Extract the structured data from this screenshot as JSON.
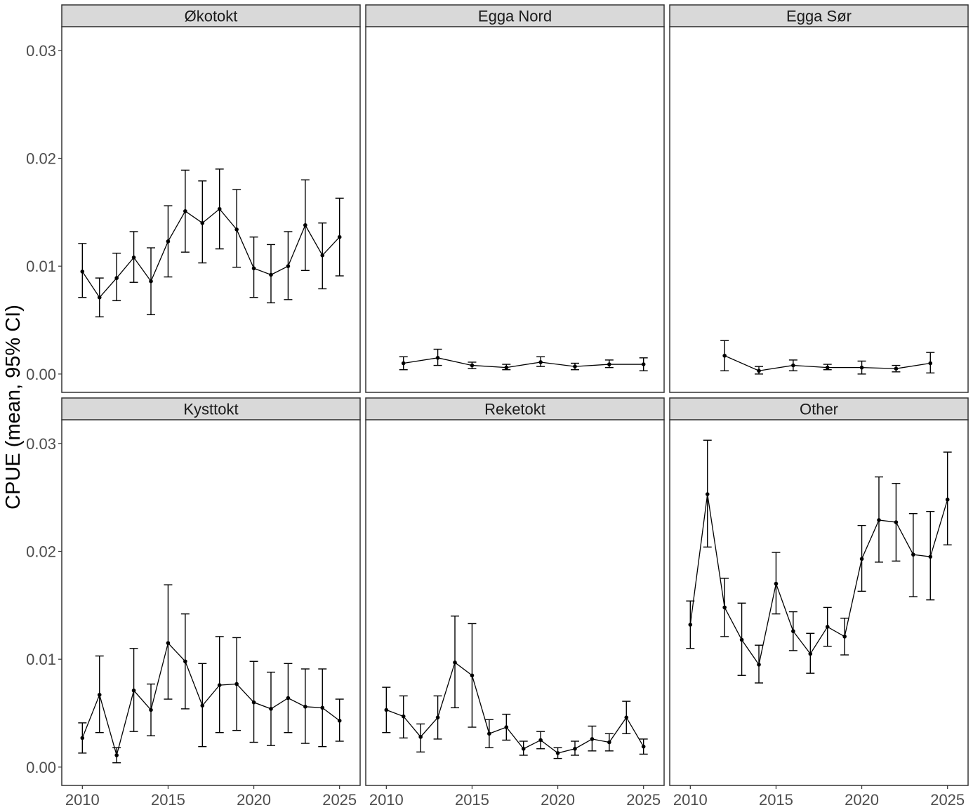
{
  "chart_data": {
    "type": "line",
    "facets": [
      "Økotokt",
      "Egga Nord",
      "Egga Sør",
      "Kysttokt",
      "Reketokt",
      "Other"
    ],
    "ylabel": "CPUE (mean, 95% CI)",
    "xlabel": "",
    "xlim": [
      2008.8,
      2026.2
    ],
    "ylim": [
      -0.0017,
      0.0322
    ],
    "x_ticks": [
      2010,
      2015,
      2020,
      2025
    ],
    "x_tick_labels": [
      "2010",
      "2015",
      "2020",
      "2025"
    ],
    "y_ticks": [
      0,
      0.01,
      0.02,
      0.03
    ],
    "y_tick_labels": [
      "0.00",
      "0.01",
      "0.02",
      "0.03"
    ],
    "grid": false,
    "legend": "none",
    "panels": [
      {
        "facet": "Økotokt",
        "x": [
          2010,
          2011,
          2012,
          2013,
          2014,
          2015,
          2016,
          2017,
          2018,
          2019,
          2020,
          2021,
          2022,
          2023,
          2024,
          2025
        ],
        "mean": [
          0.0095,
          0.0071,
          0.0089,
          0.0108,
          0.0086,
          0.0123,
          0.0151,
          0.014,
          0.0153,
          0.0134,
          0.0098,
          0.0092,
          0.01,
          0.0138,
          0.011,
          0.0127
        ],
        "lower": [
          0.0071,
          0.0053,
          0.0068,
          0.0085,
          0.0055,
          0.009,
          0.0113,
          0.0103,
          0.0116,
          0.0099,
          0.0071,
          0.0066,
          0.0069,
          0.0096,
          0.0079,
          0.0091
        ],
        "upper": [
          0.0121,
          0.0089,
          0.0112,
          0.0132,
          0.0117,
          0.0156,
          0.0189,
          0.0179,
          0.019,
          0.0171,
          0.0127,
          0.012,
          0.0132,
          0.018,
          0.014,
          0.0163
        ]
      },
      {
        "facet": "Egga Nord",
        "x": [
          2011,
          2013,
          2015,
          2017,
          2019,
          2021,
          2023,
          2025
        ],
        "mean": [
          0.001,
          0.0015,
          0.0008,
          0.0006,
          0.0011,
          0.0007,
          0.0009,
          0.0009
        ],
        "lower": [
          0.0004,
          0.0008,
          0.0005,
          0.0004,
          0.0007,
          0.0004,
          0.0006,
          0.0003
        ],
        "upper": [
          0.0016,
          0.0023,
          0.0011,
          0.0009,
          0.0016,
          0.001,
          0.0013,
          0.0015
        ]
      },
      {
        "facet": "Egga Sør",
        "x": [
          2012,
          2014,
          2016,
          2018,
          2020,
          2022,
          2024
        ],
        "mean": [
          0.0017,
          0.0003,
          0.0008,
          0.0006,
          0.0006,
          0.0005,
          0.001
        ],
        "lower": [
          0.0003,
          0.0,
          0.0003,
          0.0004,
          0.0,
          0.0002,
          0.0001
        ],
        "upper": [
          0.0031,
          0.0007,
          0.0013,
          0.0009,
          0.0012,
          0.0008,
          0.002
        ]
      },
      {
        "facet": "Kysttokt",
        "x": [
          2010,
          2011,
          2012,
          2013,
          2014,
          2015,
          2016,
          2017,
          2018,
          2019,
          2020,
          2021,
          2022,
          2023,
          2024,
          2025
        ],
        "mean": [
          0.0027,
          0.0067,
          0.0011,
          0.0071,
          0.0053,
          0.0115,
          0.0098,
          0.0057,
          0.0076,
          0.0077,
          0.006,
          0.0054,
          0.0064,
          0.0056,
          0.0055,
          0.0043
        ],
        "lower": [
          0.0013,
          0.0032,
          0.0004,
          0.0033,
          0.0029,
          0.0063,
          0.0054,
          0.0019,
          0.0032,
          0.0034,
          0.0023,
          0.002,
          0.0032,
          0.0022,
          0.0019,
          0.0024
        ],
        "upper": [
          0.0041,
          0.0103,
          0.0018,
          0.011,
          0.0077,
          0.0169,
          0.0142,
          0.0096,
          0.0121,
          0.012,
          0.0098,
          0.0088,
          0.0096,
          0.0091,
          0.0091,
          0.0063
        ]
      },
      {
        "facet": "Reketokt",
        "x": [
          2010,
          2011,
          2012,
          2013,
          2014,
          2015,
          2016,
          2017,
          2018,
          2019,
          2020,
          2021,
          2022,
          2023,
          2024,
          2025
        ],
        "mean": [
          0.0053,
          0.0047,
          0.0028,
          0.0046,
          0.0097,
          0.0085,
          0.0031,
          0.0037,
          0.0017,
          0.0025,
          0.0013,
          0.0017,
          0.0026,
          0.0023,
          0.0046,
          0.0019
        ],
        "lower": [
          0.0032,
          0.0027,
          0.0014,
          0.0026,
          0.0055,
          0.0037,
          0.0018,
          0.0025,
          0.0011,
          0.0017,
          0.0008,
          0.0011,
          0.0015,
          0.0015,
          0.0031,
          0.0012
        ],
        "upper": [
          0.0074,
          0.0066,
          0.004,
          0.0066,
          0.014,
          0.0133,
          0.0044,
          0.0049,
          0.0024,
          0.0033,
          0.0018,
          0.0024,
          0.0038,
          0.0031,
          0.0061,
          0.0026
        ]
      },
      {
        "facet": "Other",
        "x": [
          2010,
          2011,
          2012,
          2013,
          2014,
          2015,
          2016,
          2017,
          2018,
          2019,
          2020,
          2021,
          2022,
          2023,
          2024,
          2025
        ],
        "mean": [
          0.0132,
          0.0253,
          0.0148,
          0.0118,
          0.0095,
          0.017,
          0.0126,
          0.0105,
          0.013,
          0.0121,
          0.0193,
          0.0229,
          0.0227,
          0.0197,
          0.0195,
          0.0248
        ],
        "lower": [
          0.011,
          0.0204,
          0.0121,
          0.0085,
          0.0078,
          0.0142,
          0.0108,
          0.0087,
          0.0112,
          0.0104,
          0.0163,
          0.019,
          0.0191,
          0.0158,
          0.0155,
          0.0206
        ],
        "upper": [
          0.0154,
          0.0303,
          0.0175,
          0.0152,
          0.0113,
          0.0199,
          0.0144,
          0.0124,
          0.0148,
          0.0138,
          0.0224,
          0.0269,
          0.0263,
          0.0235,
          0.0237,
          0.0292
        ]
      }
    ]
  }
}
